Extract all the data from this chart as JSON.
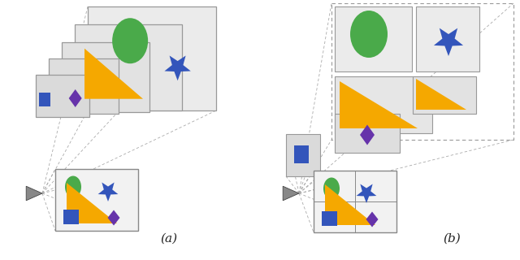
{
  "bg_color": "#ffffff",
  "label_a": "(a)",
  "label_b": "(b)",
  "colors": {
    "green": "#4aaa4a",
    "orange": "#f5a800",
    "blue": "#3355bb",
    "purple": "#6633aa",
    "camera": "#777777"
  },
  "plane_fills": [
    "#ebebeb",
    "#e6e6e6",
    "#e2e2e2",
    "#dedede",
    "#dadada"
  ],
  "plane_edge": "#999999",
  "dash_color": "#aaaaaa"
}
